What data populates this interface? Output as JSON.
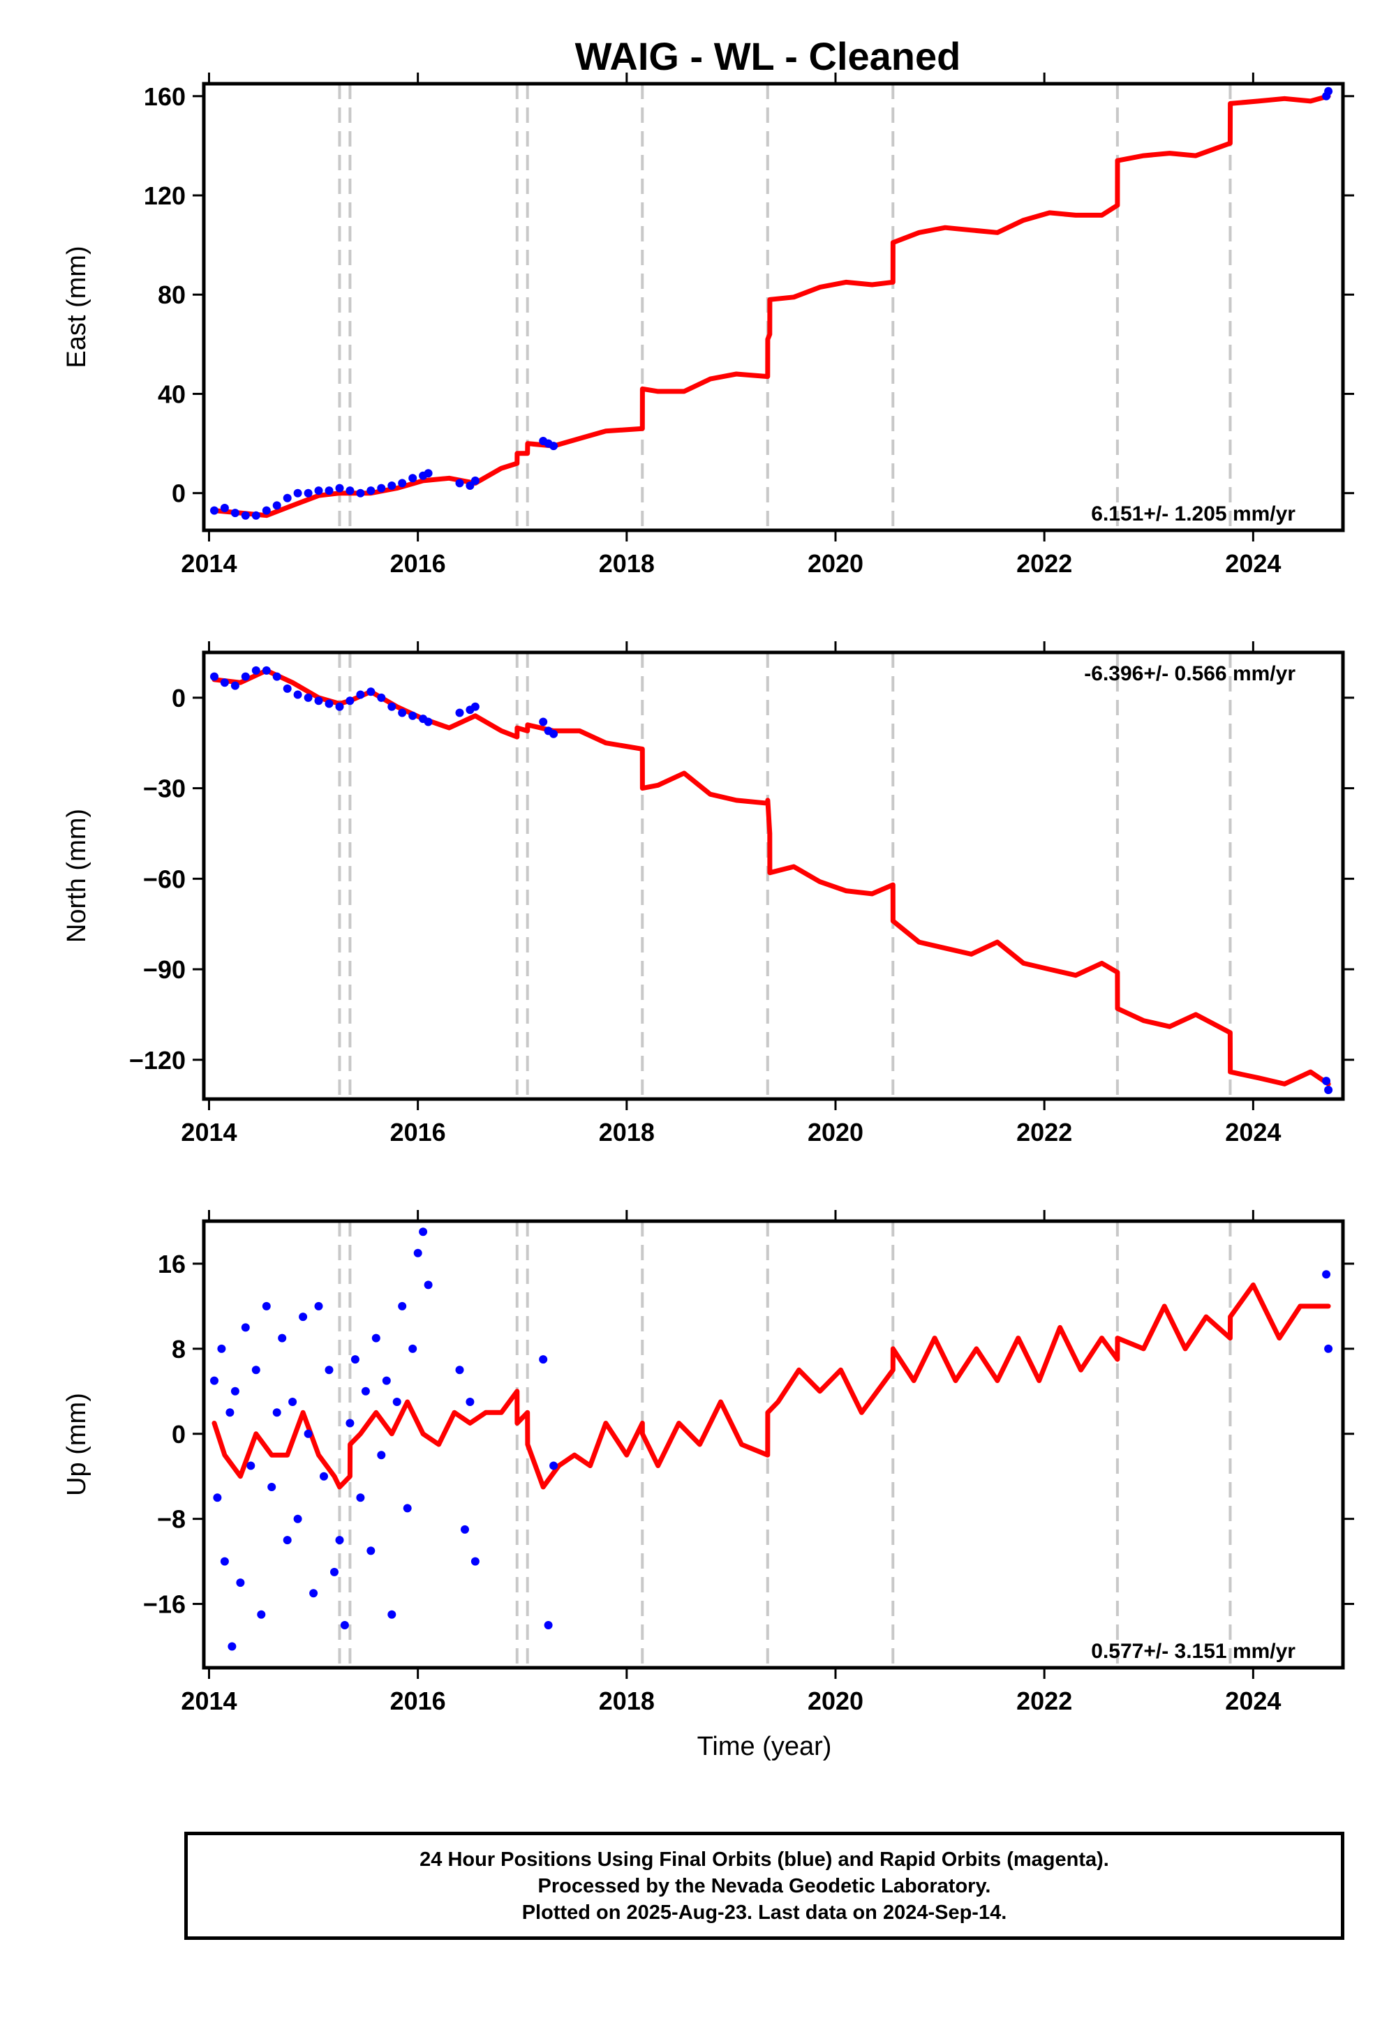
{
  "figure": {
    "title": "WAIG  - WL - Cleaned",
    "xlabel": "Time (year)"
  },
  "colors": {
    "observations": "#0000ff",
    "model": "#ff0000",
    "offset_lines": "#c8c8c8",
    "frame": "#000000"
  },
  "footer": {
    "line1": "24 Hour Positions Using Final Orbits (blue) and Rapid Orbits (magenta).",
    "line2": "Processed by the Nevada Geodetic Laboratory.",
    "line3": "Plotted on 2025-Aug-23. Last data on 2024-Sep-14."
  },
  "chart_data": [
    {
      "type": "scatter",
      "component": "east",
      "ylabel": "East (mm)",
      "rate_text": "6.151+/- 1.205 mm/yr",
      "xlim": [
        2013.95,
        2024.86
      ],
      "ylim": [
        -15,
        165
      ],
      "xticks": [
        2014,
        2016,
        2018,
        2020,
        2022,
        2024
      ],
      "xtick_labels": [
        "2014",
        "2016",
        "2018",
        "2020",
        "2022",
        "2024"
      ],
      "yticks": [
        0,
        40,
        80,
        120,
        160
      ],
      "ytick_labels": [
        "0",
        "40",
        "80",
        "120",
        "160"
      ],
      "offset_epochs": [
        2015.25,
        2015.35,
        2016.95,
        2017.05,
        2018.15,
        2019.35,
        2020.55,
        2022.7,
        2023.78
      ],
      "series": [
        {
          "kind": "observations",
          "x": [
            2014.05,
            2014.15,
            2014.25,
            2014.35,
            2014.45,
            2014.55,
            2014.65,
            2014.75,
            2014.85,
            2014.95,
            2015.05,
            2015.15,
            2015.25,
            2015.35,
            2015.45,
            2015.55,
            2015.65,
            2015.75,
            2015.85,
            2015.95,
            2016.05,
            2016.1,
            2016.4,
            2016.5,
            2016.55,
            2017.2,
            2017.25,
            2017.3,
            2024.7,
            2024.72
          ],
          "y": [
            -7,
            -6,
            -8,
            -9,
            -9,
            -7,
            -5,
            -2,
            0,
            0,
            1,
            1,
            2,
            1,
            0,
            1,
            2,
            3,
            4,
            6,
            7,
            8,
            4,
            3,
            5,
            21,
            20,
            19,
            160,
            162
          ]
        },
        {
          "kind": "model",
          "x": [
            2014.05,
            2014.3,
            2014.55,
            2014.8,
            2015.05,
            2015.25,
            2015.251,
            2015.35,
            2015.351,
            2015.55,
            2015.8,
            2016.05,
            2016.3,
            2016.55,
            2016.8,
            2016.95,
            2016.951,
            2017.05,
            2017.051,
            2017.3,
            2017.55,
            2017.8,
            2018.15,
            2018.151,
            2018.3,
            2018.55,
            2018.8,
            2019.05,
            2019.35,
            2019.351,
            2019.37,
            2019.371,
            2019.6,
            2019.85,
            2020.1,
            2020.35,
            2020.55,
            2020.551,
            2020.8,
            2021.05,
            2021.3,
            2021.55,
            2021.8,
            2022.05,
            2022.3,
            2022.55,
            2022.7,
            2022.701,
            2022.95,
            2023.2,
            2023.45,
            2023.78,
            2023.781,
            2024.05,
            2024.3,
            2024.55,
            2024.72
          ],
          "y": [
            -7,
            -8,
            -9,
            -5,
            -1,
            0,
            0,
            0,
            0,
            0,
            2,
            5,
            6,
            4,
            10,
            12,
            16,
            16,
            20,
            19,
            22,
            25,
            26,
            42,
            41,
            41,
            46,
            48,
            47,
            62,
            64,
            78,
            79,
            83,
            85,
            84,
            85,
            101,
            105,
            107,
            106,
            105,
            110,
            113,
            112,
            112,
            116,
            134,
            136,
            137,
            136,
            141,
            157,
            158,
            159,
            158,
            160
          ]
        }
      ]
    },
    {
      "type": "scatter",
      "component": "north",
      "ylabel": "North (mm)",
      "rate_text": "-6.396+/- 0.566 mm/yr",
      "xlim": [
        2013.95,
        2024.86
      ],
      "ylim": [
        -133,
        15
      ],
      "xticks": [
        2014,
        2016,
        2018,
        2020,
        2022,
        2024
      ],
      "xtick_labels": [
        "2014",
        "2016",
        "2018",
        "2020",
        "2022",
        "2024"
      ],
      "yticks": [
        0,
        -30,
        -60,
        -90,
        -120
      ],
      "ytick_labels": [
        "0",
        "−30",
        "−60",
        "−90",
        "−120"
      ],
      "offset_epochs": [
        2015.25,
        2015.35,
        2016.95,
        2017.05,
        2018.15,
        2019.35,
        2020.55,
        2022.7,
        2023.78
      ],
      "series": [
        {
          "kind": "observations",
          "x": [
            2014.05,
            2014.15,
            2014.25,
            2014.35,
            2014.45,
            2014.55,
            2014.65,
            2014.75,
            2014.85,
            2014.95,
            2015.05,
            2015.15,
            2015.25,
            2015.35,
            2015.45,
            2015.55,
            2015.65,
            2015.75,
            2015.85,
            2015.95,
            2016.05,
            2016.1,
            2016.4,
            2016.5,
            2016.55,
            2017.2,
            2017.25,
            2017.3,
            2024.7,
            2024.72
          ],
          "y": [
            7,
            5,
            4,
            7,
            9,
            9,
            7,
            3,
            1,
            0,
            -1,
            -2,
            -3,
            -1,
            1,
            2,
            0,
            -3,
            -5,
            -6,
            -7,
            -8,
            -5,
            -4,
            -3,
            -8,
            -11,
            -12,
            -127,
            -130
          ]
        },
        {
          "kind": "model",
          "x": [
            2014.05,
            2014.3,
            2014.55,
            2014.8,
            2015.05,
            2015.25,
            2015.251,
            2015.35,
            2015.351,
            2015.55,
            2015.8,
            2016.05,
            2016.3,
            2016.55,
            2016.8,
            2016.95,
            2016.951,
            2017.05,
            2017.051,
            2017.3,
            2017.55,
            2017.8,
            2018.15,
            2018.151,
            2018.3,
            2018.55,
            2018.8,
            2019.05,
            2019.35,
            2019.351,
            2019.37,
            2019.371,
            2019.6,
            2019.85,
            2020.1,
            2020.35,
            2020.55,
            2020.551,
            2020.8,
            2021.05,
            2021.3,
            2021.55,
            2021.8,
            2022.05,
            2022.3,
            2022.55,
            2022.7,
            2022.701,
            2022.95,
            2023.2,
            2023.45,
            2023.78,
            2023.781,
            2024.05,
            2024.3,
            2024.55,
            2024.72
          ],
          "y": [
            6,
            5,
            9,
            5,
            0,
            -2,
            -2,
            -1,
            -1,
            2,
            -3,
            -7,
            -10,
            -6,
            -11,
            -13,
            -10,
            -11,
            -9,
            -11,
            -11,
            -15,
            -17,
            -30,
            -29,
            -25,
            -32,
            -34,
            -35,
            -34,
            -45,
            -58,
            -56,
            -61,
            -64,
            -65,
            -62,
            -74,
            -81,
            -83,
            -85,
            -81,
            -88,
            -90,
            -92,
            -88,
            -91,
            -103,
            -107,
            -109,
            -105,
            -111,
            -124,
            -126,
            -128,
            -124,
            -128
          ]
        }
      ]
    },
    {
      "type": "scatter",
      "component": "up",
      "ylabel": "Up (mm)",
      "rate_text": "0.577+/- 3.151 mm/yr",
      "xlim": [
        2013.95,
        2024.86
      ],
      "ylim": [
        -22,
        20
      ],
      "xticks": [
        2014,
        2016,
        2018,
        2020,
        2022,
        2024
      ],
      "xtick_labels": [
        "2014",
        "2016",
        "2018",
        "2020",
        "2022",
        "2024"
      ],
      "yticks": [
        16,
        8,
        0,
        -8,
        -16
      ],
      "ytick_labels": [
        "16",
        "8",
        "0",
        "−8",
        "−16"
      ],
      "offset_epochs": [
        2015.25,
        2015.35,
        2016.95,
        2017.05,
        2018.15,
        2019.35,
        2020.55,
        2022.7,
        2023.78
      ],
      "series": [
        {
          "kind": "observations",
          "x": [
            2014.05,
            2014.08,
            2014.12,
            2014.15,
            2014.2,
            2014.22,
            2014.25,
            2014.3,
            2014.35,
            2014.4,
            2014.45,
            2014.5,
            2014.55,
            2014.6,
            2014.65,
            2014.7,
            2014.75,
            2014.8,
            2014.85,
            2014.9,
            2014.95,
            2015.0,
            2015.05,
            2015.1,
            2015.15,
            2015.2,
            2015.25,
            2015.3,
            2015.35,
            2015.4,
            2015.45,
            2015.5,
            2015.55,
            2015.6,
            2015.65,
            2015.7,
            2015.75,
            2015.8,
            2015.85,
            2015.9,
            2015.95,
            2016.0,
            2016.05,
            2016.1,
            2016.4,
            2016.45,
            2016.5,
            2016.55,
            2017.2,
            2017.25,
            2017.3,
            2024.7,
            2024.72
          ],
          "y": [
            5,
            -6,
            8,
            -12,
            2,
            -20,
            4,
            -14,
            10,
            -3,
            6,
            -17,
            12,
            -5,
            2,
            9,
            -10,
            3,
            -8,
            11,
            0,
            -15,
            12,
            -4,
            6,
            -13,
            -10,
            -18,
            1,
            7,
            -6,
            4,
            -11,
            9,
            -2,
            5,
            -17,
            3,
            12,
            -7,
            8,
            17,
            19,
            14,
            6,
            -9,
            3,
            -12,
            7,
            -18,
            -3,
            15,
            8
          ]
        },
        {
          "kind": "model",
          "x": [
            2014.05,
            2014.15,
            2014.3,
            2014.45,
            2014.6,
            2014.75,
            2014.9,
            2015.05,
            2015.2,
            2015.25,
            2015.251,
            2015.35,
            2015.351,
            2015.45,
            2015.6,
            2015.75,
            2015.9,
            2016.05,
            2016.2,
            2016.35,
            2016.5,
            2016.65,
            2016.8,
            2016.95,
            2016.951,
            2017.05,
            2017.051,
            2017.2,
            2017.35,
            2017.5,
            2017.65,
            2017.8,
            2018.0,
            2018.15,
            2018.151,
            2018.3,
            2018.5,
            2018.7,
            2018.9,
            2019.1,
            2019.35,
            2019.351,
            2019.45,
            2019.65,
            2019.85,
            2020.05,
            2020.25,
            2020.55,
            2020.551,
            2020.75,
            2020.95,
            2021.15,
            2021.35,
            2021.55,
            2021.75,
            2021.95,
            2022.15,
            2022.35,
            2022.55,
            2022.7,
            2022.701,
            2022.95,
            2023.15,
            2023.35,
            2023.55,
            2023.78,
            2023.781,
            2024.0,
            2024.25,
            2024.45,
            2024.72
          ],
          "y": [
            1,
            -2,
            -4,
            0,
            -2,
            -2,
            2,
            -2,
            -4,
            -5,
            -5,
            -4,
            -1,
            0,
            2,
            0,
            3,
            0,
            -1,
            2,
            1,
            2,
            2,
            4,
            1,
            2,
            -1,
            -5,
            -3,
            -2,
            -3,
            1,
            -2,
            1,
            0,
            -3,
            1,
            -1,
            3,
            -1,
            -2,
            2,
            3,
            6,
            4,
            6,
            2,
            6,
            8,
            5,
            9,
            5,
            8,
            5,
            9,
            5,
            10,
            6,
            9,
            7,
            9,
            8,
            12,
            8,
            11,
            9,
            11,
            14,
            9,
            12,
            12
          ]
        }
      ]
    }
  ]
}
